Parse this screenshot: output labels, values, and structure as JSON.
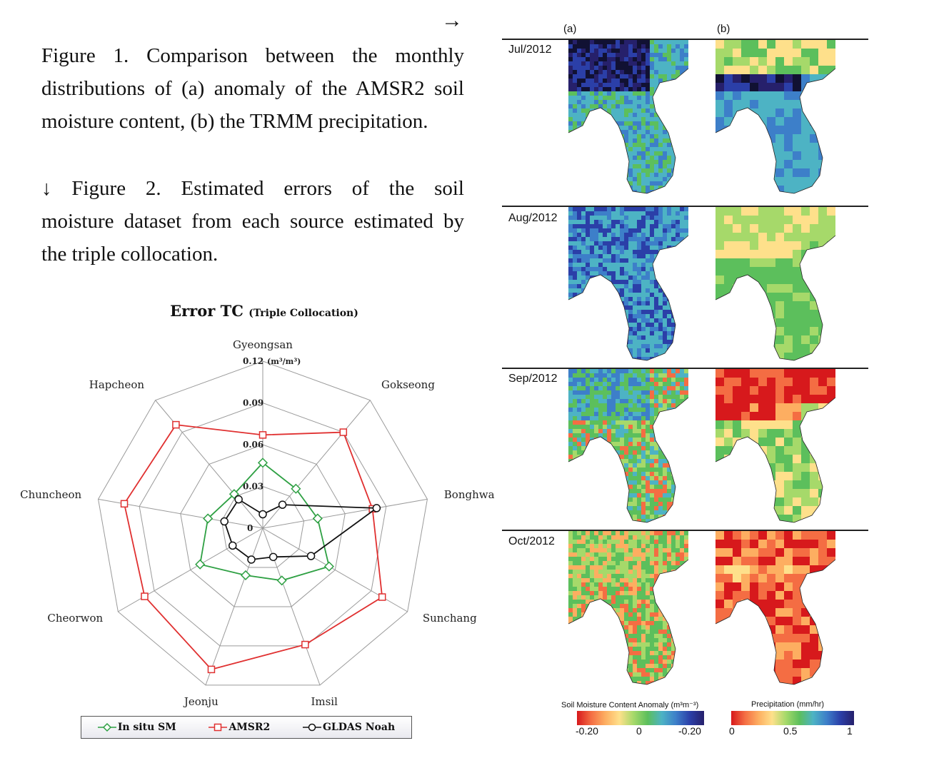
{
  "captions": {
    "arrow_right": "→",
    "fig1_lines": [
      "Figure 1. Comparison between the monthly",
      "distributions of (a) anomaly of the AMSR2 soil",
      "moisture content, (b) the TRMM precipitation."
    ],
    "fig2_lines": [
      "↓ Figure 2. Estimated errors of the soil",
      "moisture dataset from each source estimated by",
      "the triple collocation."
    ]
  },
  "chart_data": [
    {
      "type": "radar",
      "title": "Error TC",
      "subtitle": "(Triple Collocation)",
      "unit_label": "(m³/m³)",
      "ticks": [
        "0",
        "0.03",
        "0.06",
        "0.09",
        "0.12"
      ],
      "tick_values": [
        0,
        0.03,
        0.06,
        0.09,
        0.12
      ],
      "rlim": [
        0,
        0.12
      ],
      "categories": [
        "Gyeongsan",
        "Gokseong",
        "Bonghwa",
        "Sunchang",
        "Imsil",
        "Jeonju",
        "Cheorwon",
        "Chuncheon",
        "Hapcheon"
      ],
      "series": [
        {
          "name": "In situ SM",
          "color": "#2ea043",
          "marker": "diamond",
          "values": [
            0.047,
            0.037,
            0.04,
            0.055,
            0.04,
            0.036,
            0.052,
            0.04,
            0.032
          ]
        },
        {
          "name": "AMSR2",
          "color": "#e03030",
          "marker": "square",
          "values": [
            0.067,
            0.09,
            0.08,
            0.099,
            0.089,
            0.108,
            0.098,
            0.101,
            0.097
          ]
        },
        {
          "name": "GLDAS Noah",
          "color": "#111111",
          "marker": "circle",
          "values": [
            0.01,
            0.022,
            0.083,
            0.04,
            0.022,
            0.024,
            0.025,
            0.028,
            0.027
          ]
        }
      ],
      "legend_position": "bottom",
      "grid": true
    },
    {
      "type": "heatmap",
      "description_columns": [
        "(a)",
        "(b)"
      ],
      "rows": [
        "Jul/2012",
        "Aug/2012",
        "Sep/2012",
        "Oct/2012"
      ],
      "colorbars": [
        {
          "title": "Soil Moisture Content Anomaly (m³m⁻³)",
          "tick_labels": [
            "-0.20",
            "0",
            "-0.20"
          ]
        },
        {
          "title": "Precipitation (mm/hr)",
          "tick_labels": [
            "0",
            "0.5",
            "1"
          ]
        }
      ]
    }
  ]
}
